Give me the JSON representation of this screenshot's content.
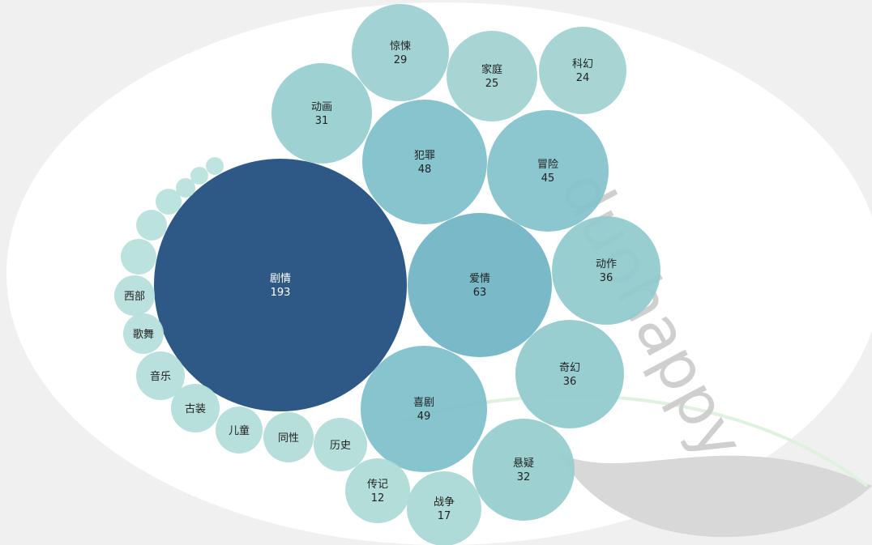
{
  "watermark": {
    "text": "duohappy"
  },
  "chart_data": {
    "type": "bubble",
    "bubbles": [
      {
        "name": "剧情",
        "value": 193,
        "color": "#2e5986"
      },
      {
        "name": "爱情",
        "value": 63,
        "color": "#6fb4c4"
      },
      {
        "name": "喜剧",
        "value": 49,
        "color": "#7dbfca"
      },
      {
        "name": "犯罪",
        "value": 48,
        "color": "#7dbfca"
      },
      {
        "name": "冒险",
        "value": 45,
        "color": "#83c2cb"
      },
      {
        "name": "动作",
        "value": 36,
        "color": "#91cacd"
      },
      {
        "name": "奇幻",
        "value": 36,
        "color": "#91cacd"
      },
      {
        "name": "悬疑",
        "value": 32,
        "color": "#95ccce"
      },
      {
        "name": "动画",
        "value": 31,
        "color": "#97cdcf"
      },
      {
        "name": "惊悚",
        "value": 29,
        "color": "#9bcfd0"
      },
      {
        "name": "家庭",
        "value": 25,
        "color": "#a0d2d1"
      },
      {
        "name": "科幻",
        "value": 24,
        "color": "#a0d2d1"
      },
      {
        "name": "战争",
        "value": 17,
        "color": "#a8d7d4"
      },
      {
        "name": "传记",
        "value": 12,
        "color": "#acdad5"
      },
      {
        "name": "历史",
        "value": null,
        "color": "#b0dcd7"
      },
      {
        "name": "同性",
        "value": null,
        "color": "#b0dcd7"
      },
      {
        "name": "儿童",
        "value": null,
        "color": "#b2ddd8"
      },
      {
        "name": "古装",
        "value": null,
        "color": "#b2ddd8"
      },
      {
        "name": "音乐",
        "value": null,
        "color": "#b4ded9"
      },
      {
        "name": "歌舞",
        "value": null,
        "color": "#b5dfda"
      },
      {
        "name": "西部",
        "value": null,
        "color": "#b5dfda"
      },
      {
        "name": "",
        "value": null,
        "color": "#b7e0db"
      },
      {
        "name": "",
        "value": null,
        "color": "#b7e0db"
      },
      {
        "name": "",
        "value": null,
        "color": "#b8e1dc"
      },
      {
        "name": "",
        "value": null,
        "color": "#b9e1dc"
      },
      {
        "name": "",
        "value": null,
        "color": "#b9e2dd"
      },
      {
        "name": "",
        "value": null,
        "color": "#bae2dd"
      }
    ]
  }
}
